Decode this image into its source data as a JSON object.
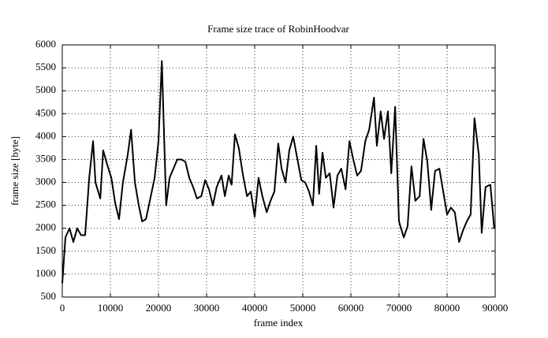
{
  "chart_data": {
    "type": "line",
    "title": "Frame size trace of RobinHoodvar",
    "x_label": "frame index",
    "y_label": "frame size [byte]",
    "xlim": [
      0,
      90000
    ],
    "ylim": [
      500,
      6000
    ],
    "xticks": [
      0,
      10000,
      20000,
      30000,
      40000,
      50000,
      60000,
      70000,
      80000,
      90000
    ],
    "yticks": [
      500,
      1000,
      1500,
      2000,
      2500,
      3000,
      3500,
      4000,
      4500,
      5000,
      5500,
      6000
    ],
    "grid": true,
    "series": [
      {
        "color": "#000000",
        "x": [
          0,
          650,
          1500,
          2300,
          3100,
          3900,
          4750,
          5600,
          6400,
          6900,
          7900,
          8500,
          9300,
          10200,
          11000,
          11800,
          12600,
          13600,
          14300,
          15100,
          15900,
          16600,
          17400,
          18200,
          19200,
          20000,
          20700,
          21600,
          22300,
          23100,
          23900,
          24800,
          25600,
          26400,
          27200,
          28000,
          28900,
          29700,
          30500,
          31300,
          32100,
          33100,
          33800,
          34600,
          35200,
          35900,
          36700,
          37500,
          38400,
          39200,
          40000,
          40800,
          41600,
          42500,
          43300,
          44100,
          44900,
          45600,
          46400,
          47200,
          48000,
          48900,
          49700,
          50500,
          51300,
          52100,
          52800,
          53400,
          54100,
          54800,
          55600,
          56400,
          57200,
          58000,
          58900,
          59700,
          60500,
          61300,
          62100,
          63000,
          63800,
          64800,
          65400,
          66200,
          66900,
          67700,
          68400,
          69200,
          70000,
          71000,
          71800,
          72600,
          73400,
          74300,
          75100,
          75900,
          76700,
          77500,
          78400,
          79200,
          80000,
          80800,
          81600,
          82500,
          83300,
          84100,
          84900,
          85700,
          86600,
          87200,
          88000,
          89000,
          89800
        ],
        "values": [
          800,
          1800,
          2000,
          1700,
          2000,
          1850,
          1850,
          3100,
          3900,
          3000,
          2650,
          3700,
          3400,
          3100,
          2550,
          2200,
          3000,
          3600,
          4150,
          3000,
          2500,
          2150,
          2200,
          2600,
          3100,
          3900,
          5650,
          2500,
          3100,
          3300,
          3500,
          3500,
          3450,
          3100,
          2900,
          2650,
          2700,
          3050,
          2850,
          2500,
          2900,
          3150,
          2700,
          3150,
          2950,
          4050,
          3750,
          3200,
          2700,
          2800,
          2250,
          3100,
          2700,
          2350,
          2600,
          2800,
          3850,
          3300,
          3000,
          3700,
          4000,
          3500,
          3050,
          3000,
          2800,
          2500,
          3800,
          2750,
          3650,
          3100,
          3200,
          2450,
          3150,
          3300,
          2850,
          3900,
          3500,
          3150,
          3250,
          3900,
          4150,
          4850,
          3800,
          4550,
          3950,
          4550,
          3200,
          4650,
          2150,
          1800,
          2050,
          3350,
          2600,
          2700,
          3950,
          3450,
          2400,
          3250,
          3300,
          2800,
          2300,
          2450,
          2350,
          1700,
          1950,
          2150,
          2300,
          4400,
          3600,
          1900,
          2900,
          2950,
          2000
        ]
      }
    ]
  }
}
